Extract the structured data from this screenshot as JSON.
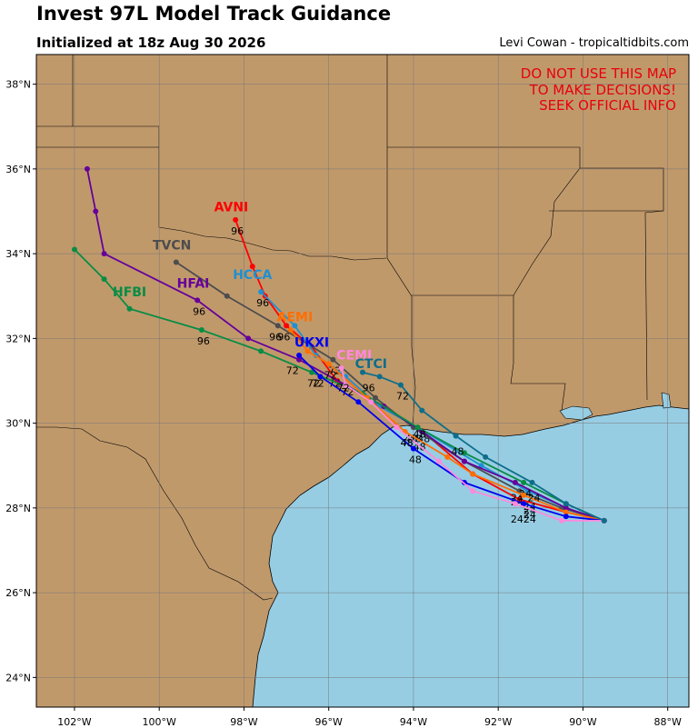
{
  "header": {
    "title": "Invest 97L Model Track Guidance",
    "subtitle": "Initialized at 18z Aug 30 2026",
    "credit": "Levi Cowan - tropicaltidbits.com"
  },
  "warning": [
    "DO NOT USE THIS MAP",
    "TO MAKE DECISIONS!",
    "SEEK OFFICIAL INFO"
  ],
  "axes": {
    "lon_ticks": [
      {
        "lon": -102,
        "label": "102°W"
      },
      {
        "lon": -100,
        "label": "100°W"
      },
      {
        "lon": -98,
        "label": "98°W"
      },
      {
        "lon": -96,
        "label": "96°W"
      },
      {
        "lon": -94,
        "label": "94°W"
      },
      {
        "lon": -92,
        "label": "92°W"
      },
      {
        "lon": -90,
        "label": "90°W"
      },
      {
        "lon": -88,
        "label": "88°W"
      }
    ],
    "lat_ticks": [
      {
        "lat": 24,
        "label": "24°N"
      },
      {
        "lat": 26,
        "label": "26°N"
      },
      {
        "lat": 28,
        "label": "28°N"
      },
      {
        "lat": 30,
        "label": "30°N"
      },
      {
        "lat": 32,
        "label": "32°N"
      },
      {
        "lat": 34,
        "label": "34°N"
      },
      {
        "lat": 36,
        "label": "36°N"
      },
      {
        "lat": 38,
        "label": "38°N"
      }
    ]
  },
  "colors": {
    "land": "#c0996b",
    "water": "#97cde3",
    "grid": "#777777",
    "warning": "#e8000b"
  },
  "chart_data": {
    "type": "map-tracks",
    "origin": {
      "lon": -89.5,
      "lat": 27.7
    },
    "lon_range": [
      -102.9,
      -87.5
    ],
    "lat_range": [
      23.3,
      38.7
    ],
    "hour_labels": [
      "24",
      "48",
      "72",
      "96"
    ],
    "series": [
      {
        "name": "AVNI",
        "color": "#ff0000",
        "label_at": {
          "lon": -98.3,
          "lat": 35.0
        },
        "points": [
          [
            -89.5,
            27.7
          ],
          [
            -90.4,
            27.9
          ],
          [
            -91.5,
            28.2
          ],
          [
            -92.6,
            28.8
          ],
          [
            -93.9,
            29.9
          ],
          [
            -94.8,
            30.4
          ],
          [
            -95.8,
            31.0
          ],
          [
            -96.4,
            31.8
          ],
          [
            -97.0,
            32.3
          ],
          [
            -97.5,
            33.0
          ],
          [
            -97.8,
            33.7
          ],
          [
            -98.2,
            34.8
          ]
        ],
        "hour_points": [
          [
            -91.3,
            28.1
          ],
          [
            -93.8,
            29.9
          ],
          [
            -95.6,
            31.0
          ],
          [
            -98.2,
            34.8
          ]
        ]
      },
      {
        "name": "TVCN",
        "color": "#4d4d4d",
        "label_at": {
          "lon": -99.7,
          "lat": 34.1
        },
        "points": [
          [
            -89.5,
            27.7
          ],
          [
            -90.5,
            28.0
          ],
          [
            -91.5,
            28.4
          ],
          [
            -92.8,
            29.1
          ],
          [
            -94.0,
            29.9
          ],
          [
            -94.9,
            30.6
          ],
          [
            -95.9,
            31.5
          ],
          [
            -97.2,
            32.3
          ],
          [
            -98.4,
            33.0
          ],
          [
            -99.6,
            33.8
          ]
        ],
        "hour_points": [
          [
            -91.6,
            28.4
          ],
          [
            -94.1,
            29.9
          ],
          [
            -95.9,
            31.5
          ],
          [
            -97.3,
            32.3
          ]
        ]
      },
      {
        "name": "HCCA",
        "color": "#1e90d2",
        "label_at": {
          "lon": -97.8,
          "lat": 33.4
        },
        "points": [
          [
            -89.5,
            27.7
          ],
          [
            -90.4,
            28.0
          ],
          [
            -91.3,
            28.4
          ],
          [
            -92.4,
            29.0
          ],
          [
            -93.9,
            29.9
          ],
          [
            -94.8,
            30.4
          ],
          [
            -95.6,
            31.1
          ],
          [
            -96.3,
            31.6
          ],
          [
            -96.8,
            32.3
          ],
          [
            -97.6,
            33.1
          ]
        ],
        "hour_points": [
          [
            -91.3,
            28.3
          ],
          [
            -94.0,
            29.9
          ],
          [
            -95.9,
            31.2
          ],
          [
            -97.6,
            33.1
          ]
        ]
      },
      {
        "name": "HFAI",
        "color": "#660099",
        "label_at": {
          "lon": -99.2,
          "lat": 33.2
        },
        "points": [
          [
            -89.5,
            27.7
          ],
          [
            -90.4,
            28.0
          ],
          [
            -91.6,
            28.6
          ],
          [
            -92.8,
            29.1
          ],
          [
            -93.8,
            29.8
          ],
          [
            -94.7,
            30.4
          ],
          [
            -95.6,
            30.9
          ],
          [
            -96.7,
            31.5
          ],
          [
            -97.9,
            32.0
          ],
          [
            -99.1,
            32.9
          ],
          [
            -101.3,
            34.0
          ],
          [
            -101.5,
            35.0
          ],
          [
            -101.7,
            36.0
          ]
        ],
        "hour_points": [
          [
            -91.6,
            28.5
          ],
          [
            -94.2,
            29.8
          ],
          [
            -96.9,
            31.5
          ],
          [
            -99.1,
            32.9
          ]
        ]
      },
      {
        "name": "HFBI",
        "color": "#088c44",
        "label_at": {
          "lon": -100.7,
          "lat": 33.0
        },
        "points": [
          [
            -89.5,
            27.7
          ],
          [
            -90.4,
            28.1
          ],
          [
            -91.4,
            28.6
          ],
          [
            -92.8,
            29.3
          ],
          [
            -93.9,
            29.9
          ],
          [
            -95.2,
            30.7
          ],
          [
            -96.4,
            31.2
          ],
          [
            -97.6,
            31.7
          ],
          [
            -99.0,
            32.2
          ],
          [
            -100.7,
            32.7
          ],
          [
            -101.3,
            33.4
          ],
          [
            -102.0,
            34.1
          ]
        ],
        "hour_points": [
          [
            -91.4,
            28.6
          ],
          [
            -93.9,
            30.0
          ],
          [
            -96.4,
            31.2
          ],
          [
            -99.0,
            32.2
          ]
        ]
      },
      {
        "name": "AEMI",
        "color": "#ff6f00",
        "label_at": {
          "lon": -96.8,
          "lat": 32.4
        },
        "points": [
          [
            -89.5,
            27.7
          ],
          [
            -90.4,
            27.9
          ],
          [
            -91.4,
            28.3
          ],
          [
            -92.6,
            28.8
          ],
          [
            -93.2,
            29.2
          ],
          [
            -94.2,
            29.8
          ],
          [
            -95.1,
            30.6
          ],
          [
            -96.0,
            31.4
          ],
          [
            -96.5,
            31.7
          ],
          [
            -96.9,
            32.2
          ]
        ],
        "hour_points": [
          [
            -91.3,
            28.2
          ],
          [
            -93.9,
            29.7
          ],
          [
            -96.0,
            31.4
          ],
          [
            -97.1,
            32.3
          ]
        ]
      },
      {
        "name": "UKXI",
        "color": "#0000ee",
        "label_at": {
          "lon": -96.4,
          "lat": 31.8
        },
        "points": [
          [
            -89.5,
            27.7
          ],
          [
            -90.4,
            27.8
          ],
          [
            -91.4,
            28.1
          ],
          [
            -92.8,
            28.6
          ],
          [
            -94.0,
            29.4
          ],
          [
            -95.3,
            30.5
          ],
          [
            -96.2,
            31.1
          ],
          [
            -96.7,
            31.6
          ]
        ],
        "hour_points": [
          [
            -91.3,
            28.0
          ],
          [
            -94.0,
            29.4
          ],
          [
            -96.3,
            31.2
          ]
        ]
      },
      {
        "name": "CEMI",
        "color": "#ff88dd",
        "label_at": {
          "lon": -95.4,
          "lat": 31.5
        },
        "points": [
          [
            -89.5,
            27.7
          ],
          [
            -90.5,
            27.7
          ],
          [
            -91.6,
            28.1
          ],
          [
            -92.6,
            28.4
          ],
          [
            -93.4,
            29.1
          ],
          [
            -94.4,
            29.9
          ],
          [
            -95.0,
            30.5
          ],
          [
            -95.6,
            30.9
          ],
          [
            -95.7,
            31.3
          ]
        ],
        "hour_points": [
          [
            -91.6,
            28.0
          ],
          [
            -94.2,
            29.8
          ],
          [
            -95.7,
            31.1
          ]
        ]
      },
      {
        "name": "CTCI",
        "color": "#0e6e8a",
        "label_at": {
          "lon": -95.0,
          "lat": 31.3
        },
        "points": [
          [
            -89.5,
            27.7
          ],
          [
            -90.4,
            28.1
          ],
          [
            -91.2,
            28.6
          ],
          [
            -92.3,
            29.2
          ],
          [
            -93.0,
            29.7
          ],
          [
            -93.8,
            30.3
          ],
          [
            -94.3,
            30.9
          ],
          [
            -94.8,
            31.1
          ],
          [
            -95.2,
            31.2
          ]
        ],
        "hour_points": [
          [
            -91.2,
            28.5
          ],
          [
            -93.0,
            29.6
          ],
          [
            -94.3,
            30.9
          ],
          [
            -95.1,
            31.1
          ]
        ]
      }
    ]
  }
}
